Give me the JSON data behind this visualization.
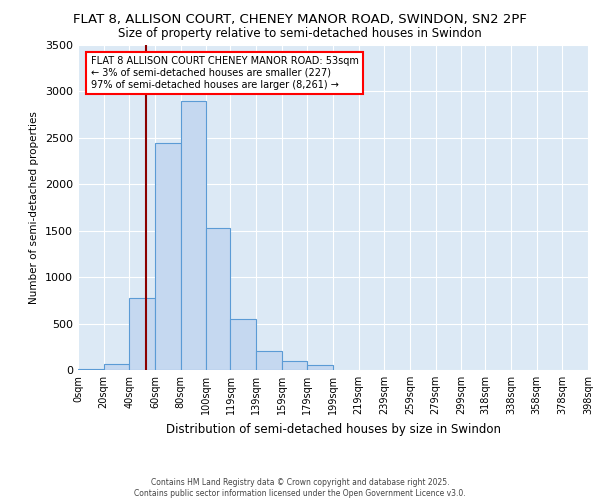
{
  "title_line1": "FLAT 8, ALLISON COURT, CHENEY MANOR ROAD, SWINDON, SN2 2PF",
  "title_line2": "Size of property relative to semi-detached houses in Swindon",
  "xlabel": "Distribution of semi-detached houses by size in Swindon",
  "ylabel": "Number of semi-detached properties",
  "annotation_line1": "FLAT 8 ALLISON COURT CHENEY MANOR ROAD: 53sqm",
  "annotation_line2": "← 3% of semi-detached houses are smaller (227)",
  "annotation_line3": "97% of semi-detached houses are larger (8,261) →",
  "property_size": 53,
  "bin_edges": [
    0,
    20,
    40,
    60,
    80,
    100,
    119,
    139,
    159,
    179,
    199,
    219,
    239,
    259,
    279,
    299,
    318,
    338,
    358,
    378,
    398
  ],
  "bar_heights": [
    10,
    60,
    780,
    2450,
    2900,
    1530,
    550,
    200,
    100,
    50,
    0,
    0,
    0,
    0,
    0,
    0,
    0,
    0,
    0,
    0
  ],
  "bar_color": "#c5d8f0",
  "bar_edge_color": "#5b9bd5",
  "vline_color": "#8b0000",
  "vline_x": 53,
  "ylim": [
    0,
    3500
  ],
  "yticks": [
    0,
    500,
    1000,
    1500,
    2000,
    2500,
    3000,
    3500
  ],
  "background_color": "#dce9f5",
  "grid_color": "#ffffff",
  "footer_line1": "Contains HM Land Registry data © Crown copyright and database right 2025.",
  "footer_line2": "Contains public sector information licensed under the Open Government Licence v3.0."
}
